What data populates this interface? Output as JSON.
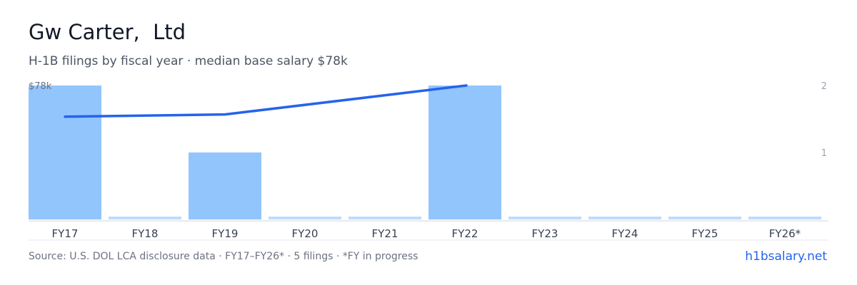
{
  "header": {
    "title": "Gw Carter,  Ltd",
    "subtitle": "H-1B filings by fiscal year · median base salary $78k"
  },
  "chart_data": {
    "type": "bar",
    "categories": [
      "FY17",
      "FY18",
      "FY19",
      "FY20",
      "FY21",
      "FY22",
      "FY23",
      "FY24",
      "FY25",
      "FY26*"
    ],
    "series": [
      {
        "values": [
          2,
          0,
          1,
          0,
          0,
          2,
          0,
          0,
          0,
          0
        ],
        "axis": "right",
        "kind": "bar",
        "color": "#93c5fd"
      },
      {
        "values": [
          64,
          null,
          65,
          null,
          null,
          78,
          null,
          null,
          null,
          null
        ],
        "axis": "left",
        "kind": "line",
        "color": "#2563eb",
        "units": "$k"
      }
    ],
    "left_axis": {
      "tick_labels": [
        "$78k"
      ],
      "max": 78,
      "min": 30
    },
    "right_axis": {
      "tick_labels": [
        "1",
        "2"
      ],
      "ylim": [
        0,
        2
      ]
    },
    "grid": false
  },
  "footer": {
    "source": "Source: U.S. DOL LCA disclosure data · FY17–FY26* · 5 filings · *FY in progress",
    "brand": "h1bsalary.net"
  },
  "colors": {
    "bar": "#93c5fd",
    "bar_zero": "#bfdbfe",
    "line": "#2563eb",
    "axis_text": "#6b7280",
    "baseline": "#d1d5db"
  }
}
